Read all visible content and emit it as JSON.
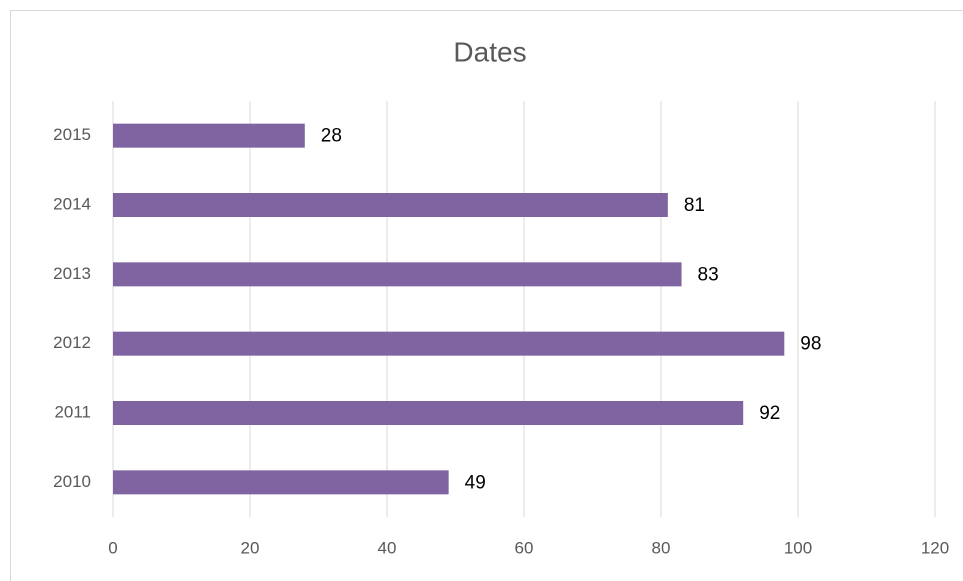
{
  "chart_data": {
    "type": "bar",
    "orientation": "horizontal",
    "title": "Dates",
    "categories": [
      "2010",
      "2011",
      "2012",
      "2013",
      "2014",
      "2015"
    ],
    "values": [
      49,
      92,
      98,
      83,
      81,
      28
    ],
    "color": "#8064a2",
    "xlim": [
      0,
      120
    ],
    "xticks": [
      0,
      20,
      40,
      60,
      80,
      100,
      120
    ],
    "grid": true
  }
}
